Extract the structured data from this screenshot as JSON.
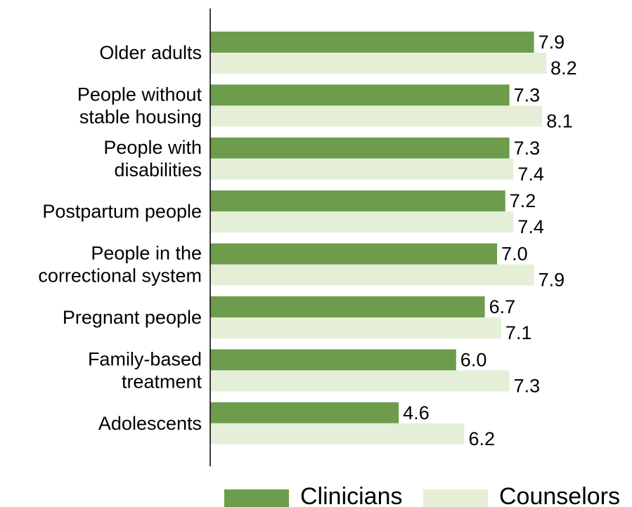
{
  "chart_data": {
    "type": "bar",
    "orientation": "horizontal",
    "categories": [
      [
        "Older adults"
      ],
      [
        "People without",
        "stable housing"
      ],
      [
        "People with",
        "disabilities"
      ],
      [
        "Postpartum people"
      ],
      [
        "People in the",
        "correctional system"
      ],
      [
        "Pregnant people"
      ],
      [
        "Family-based",
        "treatment"
      ],
      [
        "Adolescents"
      ]
    ],
    "series": [
      {
        "name": "Clinicians",
        "color": "#6d9c4c",
        "values": [
          7.9,
          7.3,
          7.3,
          7.2,
          7.0,
          6.7,
          6.0,
          4.6
        ]
      },
      {
        "name": "Counselors",
        "color": "#e5efd8",
        "values": [
          8.2,
          8.1,
          7.4,
          7.4,
          7.9,
          7.1,
          7.3,
          6.2
        ]
      }
    ],
    "value_labels": {
      "Clinicians": [
        "7.9",
        "7.3",
        "7.3",
        "7.2",
        "7.0",
        "6.7",
        "6.0",
        "4.6"
      ],
      "Counselors": [
        "8.2",
        "8.1",
        "7.4",
        "7.4",
        "7.9",
        "7.1",
        "7.3",
        "6.2"
      ]
    },
    "xlim": [
      0,
      10
    ],
    "grid": false,
    "legend": "bottom"
  }
}
